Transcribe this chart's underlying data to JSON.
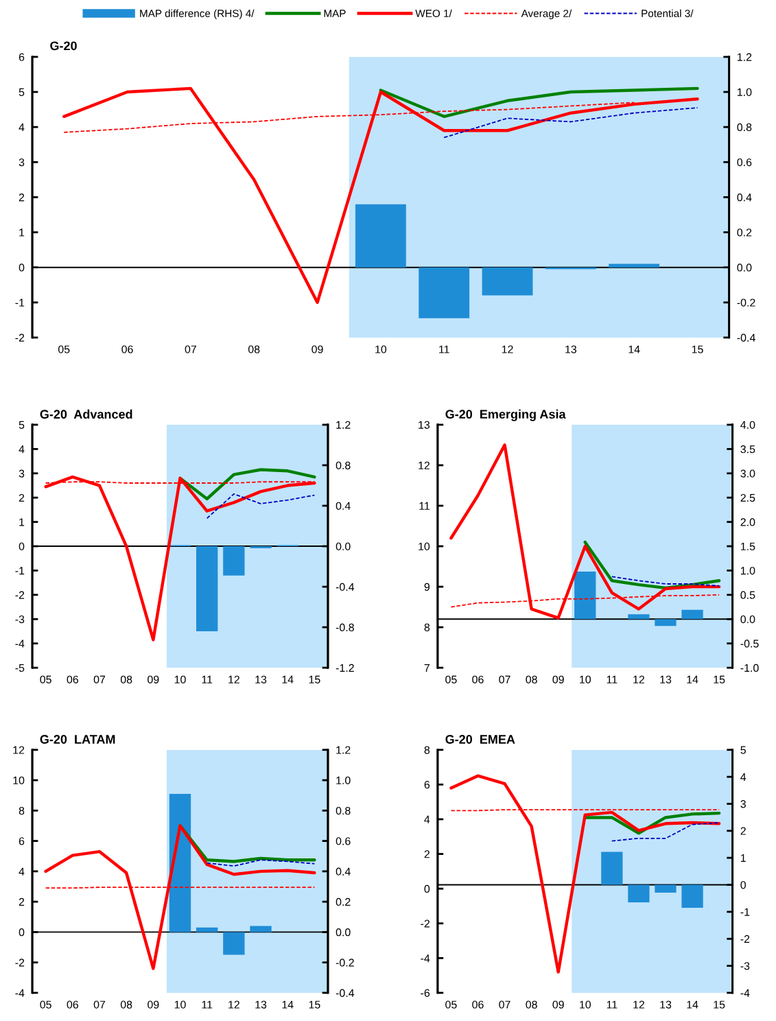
{
  "chart_data": [
    {
      "type": "line",
      "title": "G-20",
      "legend": "top",
      "categories": [
        "05",
        "06",
        "07",
        "08",
        "09",
        "10",
        "11",
        "12",
        "13",
        "14",
        "15"
      ],
      "series": [
        {
          "name": "MAP difference (RHS) 4/",
          "type": "bar",
          "axis": "y2",
          "color": "#1f8dd6",
          "values": [
            null,
            null,
            null,
            null,
            null,
            0.36,
            -0.29,
            -0.16,
            -0.01,
            0.02,
            null
          ]
        },
        {
          "name": "MAP",
          "color": "#008000",
          "line_style": "solid",
          "values": [
            null,
            null,
            null,
            null,
            null,
            5.05,
            4.3,
            4.75,
            5.0,
            5.05,
            5.1
          ]
        },
        {
          "name": "WEO 1/",
          "color": "#ff0000",
          "line_style": "solid",
          "values": [
            4.3,
            5.0,
            5.1,
            2.5,
            -1.0,
            5.0,
            3.9,
            3.9,
            4.4,
            4.65,
            4.8
          ]
        },
        {
          "name": "Average 2/",
          "color": "#ff0000",
          "line_style": "dashed",
          "values": [
            3.85,
            3.95,
            4.1,
            4.15,
            4.3,
            4.35,
            4.45,
            4.5,
            4.6,
            4.7,
            null
          ]
        },
        {
          "name": "Potential 3/",
          "color": "#0000c0",
          "line_style": "dashed",
          "values": [
            null,
            null,
            null,
            null,
            null,
            null,
            3.7,
            4.25,
            4.15,
            4.4,
            4.55
          ]
        }
      ],
      "ylim": [
        -2,
        6
      ],
      "yticks": [
        -2,
        -1,
        0,
        1,
        2,
        3,
        4,
        5,
        6
      ],
      "y2lim": [
        -0.4,
        1.2
      ],
      "y2ticks": [
        -0.4,
        -0.2,
        {
          "value": 0,
          "label": "0.0"
        },
        0.2,
        0.4,
        0.6,
        0.8,
        {
          "value": 1,
          "label": "1.0"
        },
        1.2
      ],
      "bands": [
        {
          "axis": "x",
          "from": "10",
          "to": "15",
          "color": "#c0e4fc"
        }
      ],
      "ref_lines": [
        {
          "axis": "y2",
          "value": 0,
          "color": "#000000"
        }
      ]
    },
    {
      "type": "line",
      "title": "G-20  Advanced",
      "categories": [
        "05",
        "06",
        "07",
        "08",
        "09",
        "10",
        "11",
        "12",
        "13",
        "14",
        "15"
      ],
      "series": [
        {
          "type": "bar",
          "axis": "y2",
          "color": "#1f8dd6",
          "values": [
            null,
            null,
            null,
            null,
            null,
            0.01,
            -0.84,
            -0.29,
            -0.02,
            0.01,
            null
          ]
        },
        {
          "color": "#008000",
          "line_style": "solid",
          "values": [
            null,
            null,
            null,
            null,
            null,
            2.8,
            1.95,
            2.95,
            3.15,
            3.1,
            2.85
          ]
        },
        {
          "color": "#ff0000",
          "line_style": "solid",
          "values": [
            2.45,
            2.85,
            2.5,
            0,
            -3.85,
            2.8,
            1.45,
            1.8,
            2.25,
            2.5,
            2.6
          ]
        },
        {
          "color": "#ff0000",
          "line_style": "dashed",
          "values": [
            2.6,
            2.65,
            2.65,
            2.6,
            2.6,
            2.6,
            2.6,
            2.6,
            2.65,
            2.65,
            2.65
          ]
        },
        {
          "color": "#0000c0",
          "line_style": "dashed",
          "values": [
            null,
            null,
            null,
            null,
            null,
            null,
            1.15,
            2.15,
            1.75,
            1.9,
            2.1
          ]
        }
      ],
      "ylim": [
        -5,
        5
      ],
      "yticks": [
        -5,
        -4,
        -3,
        -2,
        -1,
        0,
        1,
        2,
        3,
        4,
        5
      ],
      "y2lim": [
        -1.2,
        1.2
      ],
      "y2ticks": [
        -1.2,
        -0.8,
        -0.4,
        {
          "value": 0,
          "label": "0.0"
        },
        0.4,
        0.8,
        1.2
      ],
      "bands": [
        {
          "axis": "x",
          "from": "10",
          "to": "15",
          "color": "#c0e4fc"
        }
      ],
      "ref_lines": [
        {
          "axis": "y2",
          "value": 0,
          "color": "#000000"
        }
      ]
    },
    {
      "type": "line",
      "title": "G-20  Emerging Asia",
      "categories": [
        "05",
        "06",
        "07",
        "08",
        "09",
        "10",
        "11",
        "12",
        "13",
        "14",
        "15"
      ],
      "series": [
        {
          "type": "bar",
          "axis": "y2",
          "color": "#1f8dd6",
          "values": [
            null,
            null,
            null,
            null,
            null,
            0.98,
            null,
            0.1,
            -0.14,
            0.19,
            null
          ]
        },
        {
          "color": "#008000",
          "line_style": "solid",
          "values": [
            null,
            null,
            null,
            null,
            null,
            10.1,
            9.15,
            9.05,
            8.97,
            9.05,
            9.15
          ]
        },
        {
          "color": "#ff0000",
          "line_style": "solid",
          "values": [
            10.2,
            11.25,
            12.5,
            8.45,
            8.23,
            10.0,
            8.85,
            8.45,
            8.95,
            9.0,
            9.0
          ]
        },
        {
          "color": "#ff0000",
          "line_style": "dashed",
          "values": [
            8.5,
            8.6,
            8.62,
            8.65,
            8.7,
            8.7,
            8.72,
            8.75,
            8.78,
            8.78,
            8.8
          ]
        },
        {
          "color": "#0000c0",
          "line_style": "dashed",
          "values": [
            null,
            null,
            null,
            null,
            null,
            null,
            9.25,
            9.15,
            9.07,
            9.07,
            9.02
          ]
        }
      ],
      "ylim": [
        7,
        13
      ],
      "yticks": [
        7,
        8,
        9,
        10,
        11,
        12,
        13
      ],
      "y2lim": [
        -1,
        4
      ],
      "y2ticks": [
        {
          "value": -1,
          "label": "-1.0"
        },
        -0.5,
        {
          "value": 0,
          "label": "0.0"
        },
        0.5,
        {
          "value": 1,
          "label": "1.0"
        },
        1.5,
        {
          "value": 2,
          "label": "2.0"
        },
        2.5,
        {
          "value": 3,
          "label": "3.0"
        },
        3.5,
        {
          "value": 4,
          "label": "4.0"
        }
      ],
      "bands": [
        {
          "axis": "x",
          "from": "10",
          "to": "15",
          "color": "#c0e4fc"
        }
      ],
      "ref_lines": [
        {
          "axis": "y2",
          "value": 0,
          "color": "#000000"
        }
      ]
    },
    {
      "type": "line",
      "title": "G-20  LATAM",
      "categories": [
        "05",
        "06",
        "07",
        "08",
        "09",
        "10",
        "11",
        "12",
        "13",
        "14",
        "15"
      ],
      "series": [
        {
          "type": "bar",
          "axis": "y2",
          "color": "#1f8dd6",
          "values": [
            null,
            null,
            null,
            null,
            null,
            0.91,
            0.03,
            -0.15,
            0.04,
            null,
            null
          ]
        },
        {
          "color": "#008000",
          "line_style": "solid",
          "values": [
            null,
            null,
            null,
            null,
            null,
            7.0,
            4.75,
            4.65,
            4.85,
            4.75,
            4.75
          ]
        },
        {
          "color": "#ff0000",
          "line_style": "solid",
          "values": [
            4.0,
            5.05,
            5.3,
            3.9,
            -2.4,
            7.0,
            4.45,
            3.8,
            4.0,
            4.05,
            3.9
          ]
        },
        {
          "color": "#ff0000",
          "line_style": "dashed",
          "values": [
            2.9,
            2.9,
            2.95,
            2.95,
            2.95,
            2.95,
            2.95,
            2.95,
            2.95,
            2.95,
            2.95
          ]
        },
        {
          "color": "#0000c0",
          "line_style": "dashed",
          "values": [
            null,
            null,
            null,
            null,
            null,
            null,
            4.55,
            4.35,
            4.75,
            4.65,
            4.5
          ]
        }
      ],
      "ylim": [
        -4,
        12
      ],
      "yticks": [
        -4,
        -2,
        0,
        2,
        4,
        6,
        8,
        10,
        12
      ],
      "y2lim": [
        -0.4,
        1.2
      ],
      "y2ticks": [
        -0.4,
        -0.2,
        {
          "value": 0,
          "label": "0.0"
        },
        0.2,
        0.4,
        0.6,
        0.8,
        {
          "value": 1,
          "label": "1.0"
        },
        1.2
      ],
      "bands": [
        {
          "axis": "x",
          "from": "10",
          "to": "15",
          "color": "#c0e4fc"
        }
      ],
      "ref_lines": [
        {
          "axis": "y2",
          "value": 0,
          "color": "#000000"
        }
      ]
    },
    {
      "type": "line",
      "title": "G-20  EMEA",
      "categories": [
        "05",
        "06",
        "07",
        "08",
        "09",
        "10",
        "11",
        "12",
        "13",
        "14",
        "15"
      ],
      "series": [
        {
          "type": "bar",
          "axis": "y2",
          "color": "#1f8dd6",
          "values": [
            null,
            null,
            null,
            null,
            null,
            null,
            1.22,
            -0.65,
            -0.29,
            -0.85,
            null
          ]
        },
        {
          "color": "#008000",
          "line_style": "solid",
          "values": [
            null,
            null,
            null,
            null,
            null,
            4.1,
            4.1,
            3.2,
            4.1,
            4.3,
            4.35
          ]
        },
        {
          "color": "#ff0000",
          "line_style": "solid",
          "values": [
            5.8,
            6.5,
            6.05,
            3.6,
            -4.8,
            4.25,
            4.4,
            3.35,
            3.75,
            3.8,
            3.75
          ]
        },
        {
          "color": "#ff0000",
          "line_style": "dashed",
          "values": [
            4.5,
            4.5,
            4.55,
            4.55,
            4.55,
            4.55,
            4.55,
            4.55,
            4.55,
            4.55,
            4.55
          ]
        },
        {
          "color": "#0000c0",
          "line_style": "dashed",
          "values": [
            null,
            null,
            null,
            null,
            null,
            null,
            2.75,
            2.9,
            2.9,
            3.7,
            3.8
          ]
        }
      ],
      "ylim": [
        -6,
        8
      ],
      "yticks": [
        -6,
        -4,
        -2,
        0,
        2,
        4,
        6,
        8
      ],
      "y2lim": [
        -4,
        5
      ],
      "y2ticks": [
        -4,
        -3,
        -2,
        -1,
        0,
        1,
        2,
        3,
        4,
        5
      ],
      "bands": [
        {
          "axis": "x",
          "from": "10",
          "to": "15",
          "color": "#c0e4fc"
        }
      ],
      "ref_lines": [
        {
          "axis": "y2",
          "value": 0,
          "color": "#000000"
        }
      ]
    }
  ]
}
